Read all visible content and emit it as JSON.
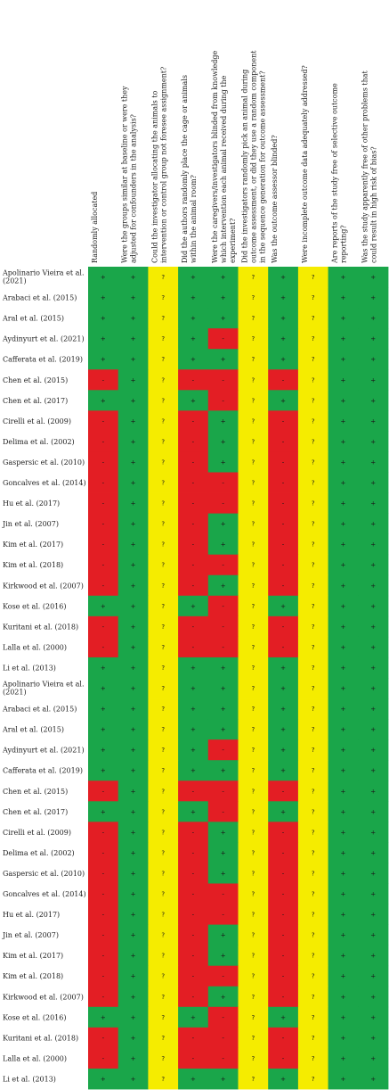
{
  "chart_data": {
    "type": "heatmap",
    "title": "",
    "columns": [
      "Randomly allocated",
      "Were the groups similar at baseline or were they adjusted for confounders in the analysis?",
      "Could the investigator allocating the animals to intervention or control group not foresee assignment?",
      "Did the authors randomly place the cage or animals within the animal room?",
      "Were the caregivers/investigators blinded from knowledge which intervention each animal received during the experiment?",
      "Did the investigators randomly pick an animal during outcome assessment, or did they use a random component in the sequence generation for outcome assessment?",
      "Was the outcome assessor blinded?",
      "Were incomplete outcome data adequately addressed?",
      "Are reports of the study free of selective outcome reporting?",
      "Was the study apparently free of other problems that could result in high risk of bias?"
    ],
    "studies": [
      "Apolinario Vieira et al. (2021)",
      "Arabaci et al. (2015)",
      "Aral et al. (2015)",
      "Aydinyurt et al. (2021)",
      "Cafferata et al. (2019)",
      "Chen et al. (2015)",
      "Chen et al. (2017)",
      "Cirelli et al. (2009)",
      "Delima et al. (2002)",
      "Gaspersic et al. (2010)",
      "Goncalves et al. (2014)",
      "Hu et al. (2017)",
      "Jin et al. (2007)",
      "Kim et al. (2017)",
      "Kim et al. (2018)",
      "Kirkwood et al. (2007)",
      "Kose et al. (2016)",
      "Kuritani et al. (2018)",
      "Lalla et al. (2000)",
      "Li et al. (2013)",
      "Apolinario Vieira et al. (2021)",
      "Arabaci et al. (2015)",
      "Aral et al. (2015)",
      "Aydinyurt et al. (2021)",
      "Cafferata et al. (2019)",
      "Chen et al. (2015)",
      "Chen et al. (2017)",
      "Cirelli et al. (2009)",
      "Delima et al. (2002)",
      "Gaspersic et al. (2010)",
      "Goncalves et al. (2014)",
      "Hu et al. (2017)",
      "Jin et al. (2007)",
      "Kim et al. (2017)",
      "Kim et al. (2018)",
      "Kirkwood et al. (2007)",
      "Kose et al. (2016)",
      "Kuritani et al. (2018)",
      "Lalla et al. (2000)",
      "Li et al. (2013)"
    ],
    "ratings": [
      [
        "+",
        "+",
        "?",
        "+",
        "+",
        "?",
        "+",
        "?",
        "+",
        "+"
      ],
      [
        "+",
        "+",
        "?",
        "+",
        "+",
        "?",
        "+",
        "?",
        "+",
        "+"
      ],
      [
        "+",
        "+",
        "?",
        "+",
        "+",
        "?",
        "+",
        "?",
        "+",
        "+"
      ],
      [
        "+",
        "+",
        "?",
        "+",
        "-",
        "?",
        "+",
        "?",
        "+",
        "+"
      ],
      [
        "+",
        "+",
        "?",
        "+",
        "+",
        "?",
        "+",
        "?",
        "+",
        "+"
      ],
      [
        "-",
        "+",
        "?",
        "-",
        "-",
        "?",
        "-",
        "?",
        "+",
        "+"
      ],
      [
        "+",
        "+",
        "?",
        "+",
        "-",
        "?",
        "+",
        "?",
        "+",
        "+"
      ],
      [
        "-",
        "+",
        "?",
        "-",
        "+",
        "?",
        "-",
        "?",
        "+",
        "+"
      ],
      [
        "-",
        "+",
        "?",
        "-",
        "+",
        "?",
        "-",
        "?",
        "+",
        "+"
      ],
      [
        "-",
        "+",
        "?",
        "-",
        "+",
        "?",
        "-",
        "?",
        "+",
        "+"
      ],
      [
        "-",
        "+",
        "?",
        "-",
        "-",
        "?",
        "-",
        "?",
        "+",
        "+"
      ],
      [
        "-",
        "+",
        "?",
        "-",
        "-",
        "?",
        "-",
        "?",
        "+",
        "+"
      ],
      [
        "-",
        "+",
        "?",
        "-",
        "+",
        "?",
        "-",
        "?",
        "+",
        "+"
      ],
      [
        "-",
        "+",
        "?",
        "-",
        "+",
        "?",
        "-",
        "?",
        "+",
        "+"
      ],
      [
        "-",
        "+",
        "?",
        "-",
        "-",
        "?",
        "-",
        "?",
        "+",
        "+"
      ],
      [
        "-",
        "+",
        "?",
        "-",
        "+",
        "?",
        "-",
        "?",
        "+",
        "+"
      ],
      [
        "+",
        "+",
        "?",
        "+",
        "-",
        "?",
        "+",
        "?",
        "+",
        "+"
      ],
      [
        "-",
        "+",
        "?",
        "-",
        "-",
        "?",
        "-",
        "?",
        "+",
        "+"
      ],
      [
        "-",
        "+",
        "?",
        "-",
        "-",
        "?",
        "-",
        "?",
        "+",
        "+"
      ],
      [
        "+",
        "+",
        "?",
        "+",
        "+",
        "?",
        "+",
        "?",
        "+",
        "+"
      ],
      [
        "+",
        "+",
        "?",
        "+",
        "+",
        "?",
        "+",
        "?",
        "+",
        "+"
      ],
      [
        "+",
        "+",
        "?",
        "+",
        "+",
        "?",
        "+",
        "?",
        "+",
        "+"
      ],
      [
        "+",
        "+",
        "?",
        "+",
        "+",
        "?",
        "+",
        "?",
        "+",
        "+"
      ],
      [
        "+",
        "+",
        "?",
        "+",
        "-",
        "?",
        "+",
        "?",
        "+",
        "+"
      ],
      [
        "+",
        "+",
        "?",
        "+",
        "+",
        "?",
        "+",
        "?",
        "+",
        "+"
      ],
      [
        "-",
        "+",
        "?",
        "-",
        "-",
        "?",
        "-",
        "?",
        "+",
        "+"
      ],
      [
        "+",
        "+",
        "?",
        "+",
        "-",
        "?",
        "+",
        "?",
        "+",
        "+"
      ],
      [
        "-",
        "+",
        "?",
        "-",
        "+",
        "?",
        "-",
        "?",
        "+",
        "+"
      ],
      [
        "-",
        "+",
        "?",
        "-",
        "+",
        "?",
        "-",
        "?",
        "+",
        "+"
      ],
      [
        "-",
        "+",
        "?",
        "-",
        "+",
        "?",
        "-",
        "?",
        "+",
        "+"
      ],
      [
        "-",
        "+",
        "?",
        "-",
        "-",
        "?",
        "-",
        "?",
        "+",
        "+"
      ],
      [
        "-",
        "+",
        "?",
        "-",
        "-",
        "?",
        "-",
        "?",
        "+",
        "+"
      ],
      [
        "-",
        "+",
        "?",
        "-",
        "+",
        "?",
        "-",
        "?",
        "+",
        "+"
      ],
      [
        "-",
        "+",
        "?",
        "-",
        "+",
        "?",
        "-",
        "?",
        "+",
        "+"
      ],
      [
        "-",
        "+",
        "?",
        "-",
        "-",
        "?",
        "-",
        "?",
        "+",
        "+"
      ],
      [
        "-",
        "+",
        "?",
        "-",
        "+",
        "?",
        "-",
        "?",
        "+",
        "+"
      ],
      [
        "+",
        "+",
        "?",
        "+",
        "-",
        "?",
        "+",
        "?",
        "+",
        "+"
      ],
      [
        "-",
        "+",
        "?",
        "-",
        "-",
        "?",
        "-",
        "?",
        "+",
        "+"
      ],
      [
        "-",
        "+",
        "?",
        "-",
        "-",
        "?",
        "-",
        "?",
        "+",
        "+"
      ],
      [
        "+",
        "+",
        "?",
        "+",
        "+",
        "?",
        "+",
        "?",
        "+",
        "+"
      ]
    ],
    "colors": {
      "+": "#1aa64a",
      "-": "#e31e24",
      "?": "#f5ec00"
    }
  }
}
